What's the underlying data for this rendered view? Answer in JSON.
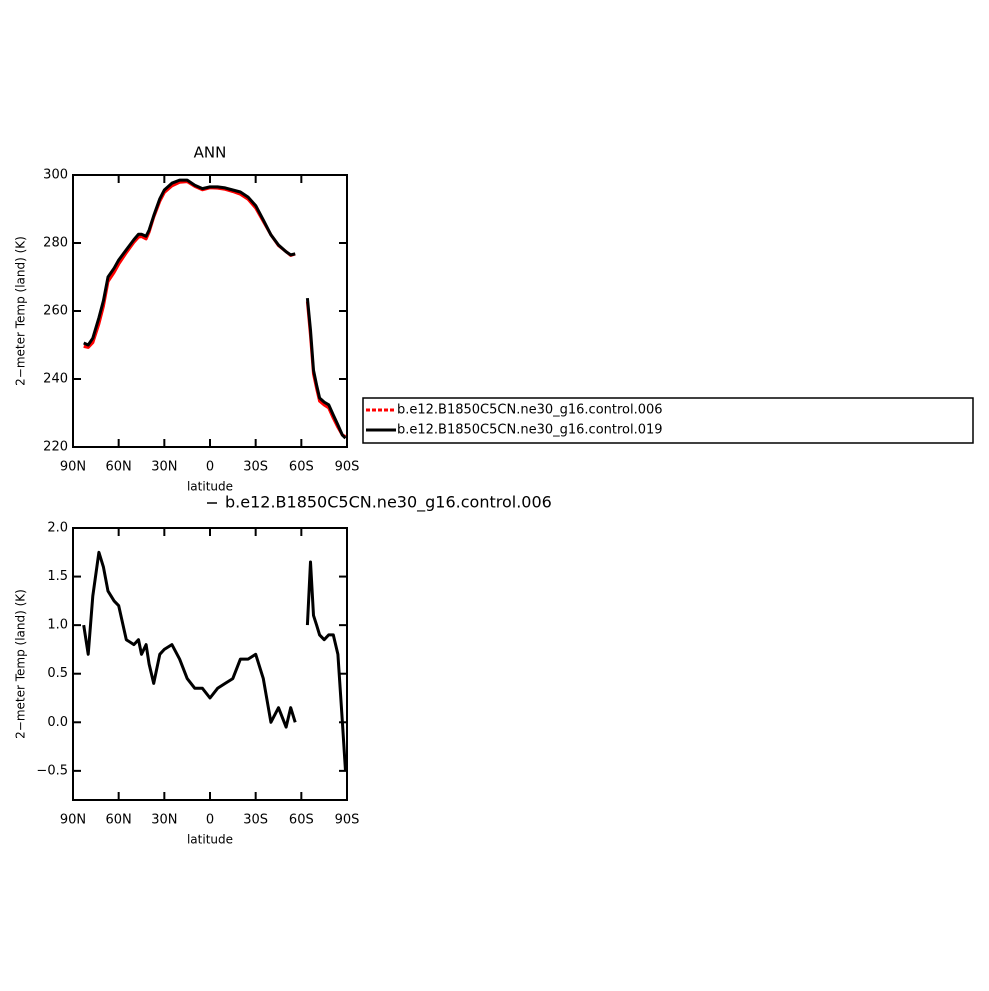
{
  "chart_data": [
    {
      "type": "line",
      "title": "ANN",
      "xlabel": "latitude",
      "ylabel": "2−meter Temp (land) (K)",
      "x": [
        83,
        80,
        77,
        73,
        70,
        67,
        63,
        60,
        55,
        50,
        47,
        45,
        42,
        40,
        37,
        33,
        30,
        25,
        20,
        15,
        10,
        5,
        0,
        -5,
        -10,
        -15,
        -20,
        -25,
        -30,
        -35,
        -40,
        -45,
        -50,
        -53,
        -56,
        -60,
        -64,
        -66,
        -68,
        -70,
        -72,
        -75,
        -78,
        -81,
        -84,
        -87,
        -89
      ],
      "series": [
        {
          "name": "b.e12.B1850C5CN.ne30_g16.control.006",
          "color": "#ff0000",
          "values": [
            249.6,
            249.3,
            250.7,
            256.25,
            261.4,
            268.65,
            271.35,
            273.8,
            277.15,
            280.2,
            281.75,
            281.9,
            281.2,
            283.2,
            287.6,
            292.3,
            294.85,
            296.8,
            297.85,
            298.05,
            296.65,
            295.65,
            296.25,
            296.15,
            295.8,
            295.15,
            294.35,
            292.85,
            290.3,
            286.35,
            282.4,
            279.25,
            277.45,
            276.35,
            276.8,
            null,
            262.8,
            252.75,
            241.5,
            237.2,
            233.5,
            232.35,
            231.5,
            228.5,
            225.8,
            223.5,
            223.1
          ]
        },
        {
          "name": "b.e12.B1850C5CN.ne30_g16.control.019",
          "color": "#000000",
          "values": [
            250.6,
            250,
            252,
            258,
            263,
            270,
            272.6,
            275,
            278,
            281,
            282.6,
            282.6,
            282,
            283.8,
            288,
            293,
            295.6,
            297.6,
            298.5,
            298.5,
            297,
            296,
            296.5,
            296.5,
            296.2,
            295.6,
            295,
            293.5,
            291,
            286.8,
            282.4,
            279.4,
            277.4,
            276.5,
            276.8,
            null,
            263.8,
            254.4,
            242.6,
            238.2,
            234.4,
            233.2,
            232.4,
            229.4,
            226.5,
            223.5,
            222.6
          ]
        }
      ],
      "xlim": [
        90,
        -90
      ],
      "xticks": [
        {
          "value": 90,
          "label": "90N"
        },
        {
          "value": 60,
          "label": "60N"
        },
        {
          "value": 30,
          "label": "30N"
        },
        0,
        {
          "value": -30,
          "label": "30S"
        },
        {
          "value": -60,
          "label": "60S"
        },
        {
          "value": -90,
          "label": "90S"
        }
      ],
      "ylim": [
        220,
        300
      ],
      "yticks": [
        220,
        240,
        260,
        280,
        300
      ],
      "legend": "right"
    },
    {
      "type": "line",
      "xlabel": "latitude",
      "ylabel": "2−meter Temp (land) (K)",
      "x": [
        83,
        80,
        77,
        73,
        70,
        67,
        63,
        60,
        55,
        50,
        47,
        45,
        42,
        40,
        37,
        33,
        30,
        25,
        20,
        15,
        10,
        5,
        0,
        -5,
        -10,
        -15,
        -20,
        -25,
        -30,
        -35,
        -40,
        -45,
        -50,
        -53,
        -56,
        -60,
        -64,
        -66,
        -68,
        -70,
        -72,
        -75,
        -78,
        -81,
        -84,
        -87,
        -89
      ],
      "series": [
        {
          "name": "b.e12.B1850C5CN.ne30_g16.control.006",
          "color": "#000000",
          "values": [
            1.0,
            0.7,
            1.3,
            1.75,
            1.6,
            1.35,
            1.25,
            1.2,
            0.85,
            0.8,
            0.85,
            0.7,
            0.8,
            0.6,
            0.4,
            0.7,
            0.75,
            0.8,
            0.65,
            0.45,
            0.35,
            0.35,
            0.25,
            0.35,
            0.4,
            0.45,
            0.65,
            0.65,
            0.7,
            0.45,
            0.0,
            0.15,
            -0.05,
            0.15,
            0.0,
            null,
            1.0,
            1.65,
            1.1,
            1.0,
            0.9,
            0.85,
            0.9,
            0.9,
            0.7,
            0.0,
            -0.5
          ]
        }
      ],
      "xlim": [
        90,
        -90
      ],
      "xticks": [
        {
          "value": 90,
          "label": "90N"
        },
        {
          "value": 60,
          "label": "60N"
        },
        {
          "value": 30,
          "label": "30N"
        },
        0,
        {
          "value": -30,
          "label": "30S"
        },
        {
          "value": -60,
          "label": "60S"
        },
        {
          "value": -90,
          "label": "90S"
        }
      ],
      "ylim": [
        -0.8,
        2.0
      ],
      "yticks": [
        {
          "value": -0.5,
          "label": "−0.5"
        },
        {
          "value": 0,
          "label": "0.0"
        },
        0.5,
        {
          "value": 1,
          "label": "1.0"
        },
        1.5,
        {
          "value": 2,
          "label": "2.0"
        }
      ],
      "legend": "top"
    }
  ]
}
